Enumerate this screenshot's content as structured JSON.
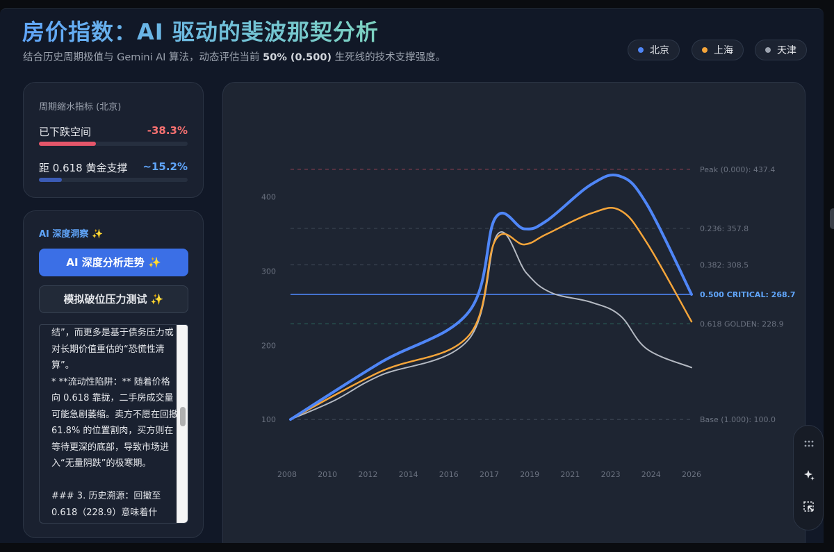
{
  "header": {
    "title": "房价指数：AI 驱动的斐波那契分析",
    "subtitle_pre": "结合历史周期极值与 Gemini AI 算法，动态评估当前 ",
    "subtitle_bold": "50% (0.500)",
    "subtitle_post": " 生死线的技术支撑强度。"
  },
  "legend": [
    {
      "label": "北京",
      "color": "#4f86f7"
    },
    {
      "label": "上海",
      "color": "#f5a53a"
    },
    {
      "label": "天津",
      "color": "#9ca3af"
    }
  ],
  "metrics_card": {
    "title": "周期缩水指标 (北京)",
    "items": [
      {
        "label": "已下跌空间",
        "value": "-38.3%",
        "color": "#f87171",
        "bar_color": "#e5566a",
        "fill": 0.383
      },
      {
        "label": "距 0.618 黄金支撑",
        "value": "~15.2%",
        "color": "#60a5fa",
        "bar_color": "#3b5bb5",
        "fill": 0.152
      }
    ]
  },
  "ai_card": {
    "title": "AI 深度洞察 ✨",
    "primary_button": "AI 深度分析走势 ✨",
    "secondary_button": "模拟破位压力测试 ✨",
    "insight_text": "结”，而更多是基于债务压力或对长期价值重估的“恐慌性清算”。\n* **流动性陷阱：** 随着价格向 0.618 靠拢，二手房成交量可能急剧萎缩。卖方不愿在回撤 61.8% 的位置割肉，买方则在等待更深的底部，导致市场进入“无量阴跌”的极寒期。\n\n### 3. 历史溯源：回撤至 0.618（228.9）意味着什"
  },
  "chart_data": {
    "type": "line",
    "x_ticks": [
      "2008",
      "2010",
      "2012",
      "2014",
      "2016",
      "2017",
      "2019",
      "2021",
      "2023",
      "2024",
      "2026"
    ],
    "y_ticks": [
      100,
      200,
      300,
      400
    ],
    "ylim": [
      72,
      470
    ],
    "grid": false,
    "legend_position": "top-right",
    "series": [
      {
        "name": "北京",
        "color": "#4f86f7",
        "width": 4,
        "points": [
          [
            2008,
            100
          ],
          [
            2012,
            176
          ],
          [
            2016,
            245
          ],
          [
            2017.2,
            372
          ],
          [
            2018.5,
            357
          ],
          [
            2019.5,
            368
          ],
          [
            2021.5,
            417
          ],
          [
            2022.8,
            428
          ],
          [
            2024,
            390
          ],
          [
            2026,
            268.7
          ]
        ]
      },
      {
        "name": "上海",
        "color": "#f5a53a",
        "width": 2.5,
        "points": [
          [
            2008,
            100
          ],
          [
            2012,
            164
          ],
          [
            2016,
            213
          ],
          [
            2017.2,
            342
          ],
          [
            2018.5,
            336
          ],
          [
            2019.5,
            350
          ],
          [
            2021.5,
            378
          ],
          [
            2022.8,
            382
          ],
          [
            2024,
            338
          ],
          [
            2026,
            232
          ]
        ]
      },
      {
        "name": "天津",
        "color": "#b4b9c2",
        "width": 2,
        "points": [
          [
            2008,
            100
          ],
          [
            2010,
            126
          ],
          [
            2012,
            159
          ],
          [
            2016,
            208
          ],
          [
            2017.3,
            350
          ],
          [
            2018.6,
            297
          ],
          [
            2019.7,
            271
          ],
          [
            2021.5,
            258
          ],
          [
            2022.8,
            240
          ],
          [
            2024,
            195
          ],
          [
            2026,
            170
          ]
        ]
      }
    ],
    "fib_levels": [
      {
        "label": "Peak (0.000): 437.4",
        "value": 437.4,
        "color": "#b04a5a",
        "dashed": true,
        "highlight": false
      },
      {
        "label": "0.236: 357.8",
        "value": 357.8,
        "color": "#4b5563",
        "dashed": true,
        "highlight": false
      },
      {
        "label": "0.382: 308.5",
        "value": 308.5,
        "color": "#4b5563",
        "dashed": true,
        "highlight": false
      },
      {
        "label": "0.500 CRITICAL: 268.7",
        "value": 268.7,
        "color": "#4f86f7",
        "dashed": false,
        "highlight": true
      },
      {
        "label": "0.618 GOLDEN: 228.9",
        "value": 228.9,
        "color": "#2f7a6a",
        "dashed": true,
        "highlight": false
      },
      {
        "label": "Base (1.000): 100.0",
        "value": 100.0,
        "color": "#4b5563",
        "dashed": true,
        "highlight": false
      }
    ]
  },
  "toolbar": {
    "icons": [
      "grid-icon",
      "sparkle-icon",
      "select-icon"
    ]
  }
}
